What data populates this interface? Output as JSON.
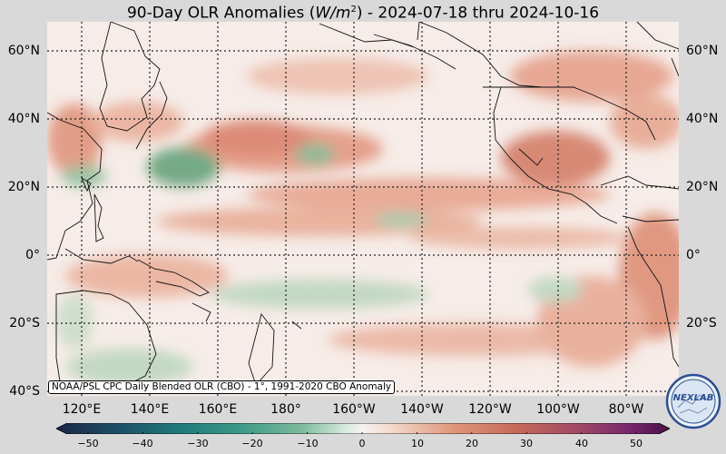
{
  "title": {
    "prefix": "90-Day OLR Anomalies (",
    "units": "W/m",
    "units_exp": "2",
    "suffix": ") - 2024-07-18 thru 2024-10-16"
  },
  "latitude_labels": [
    "60°N",
    "40°N",
    "20°N",
    "0°",
    "20°S",
    "40°S"
  ],
  "longitude_labels": [
    "120°E",
    "140°E",
    "160°E",
    "180°",
    "160°W",
    "140°W",
    "120°W",
    "100°W",
    "80°W"
  ],
  "credit": "NOAA/PSL CPC Daily Blended OLR (CBO) - 1°, 1991-2020 CBO Anomaly",
  "colorbar": {
    "ticks": [
      "−50",
      "−40",
      "−30",
      "−20",
      "−10",
      "0",
      "10",
      "20",
      "30",
      "40",
      "50"
    ],
    "range": [
      -50,
      50
    ],
    "colors_negative": [
      "#1b2646",
      "#1d4f66",
      "#1f7a7a",
      "#3d9a88",
      "#7dbb9c",
      "#c6e1cf",
      "#f5f5f0"
    ],
    "colors_positive": [
      "#f7f0ea",
      "#f0c8b4",
      "#e0957a",
      "#c76a5a",
      "#a14a66",
      "#7a2a6e",
      "#4a1046"
    ]
  },
  "logo": {
    "text": "NEXLAB"
  },
  "map": {
    "ocean_background": "#f5ebe8",
    "positive_anomaly_color": "#d9826b",
    "negative_anomaly_color": "#5a9c72",
    "gridlines": "dotted",
    "coastlines": true
  }
}
